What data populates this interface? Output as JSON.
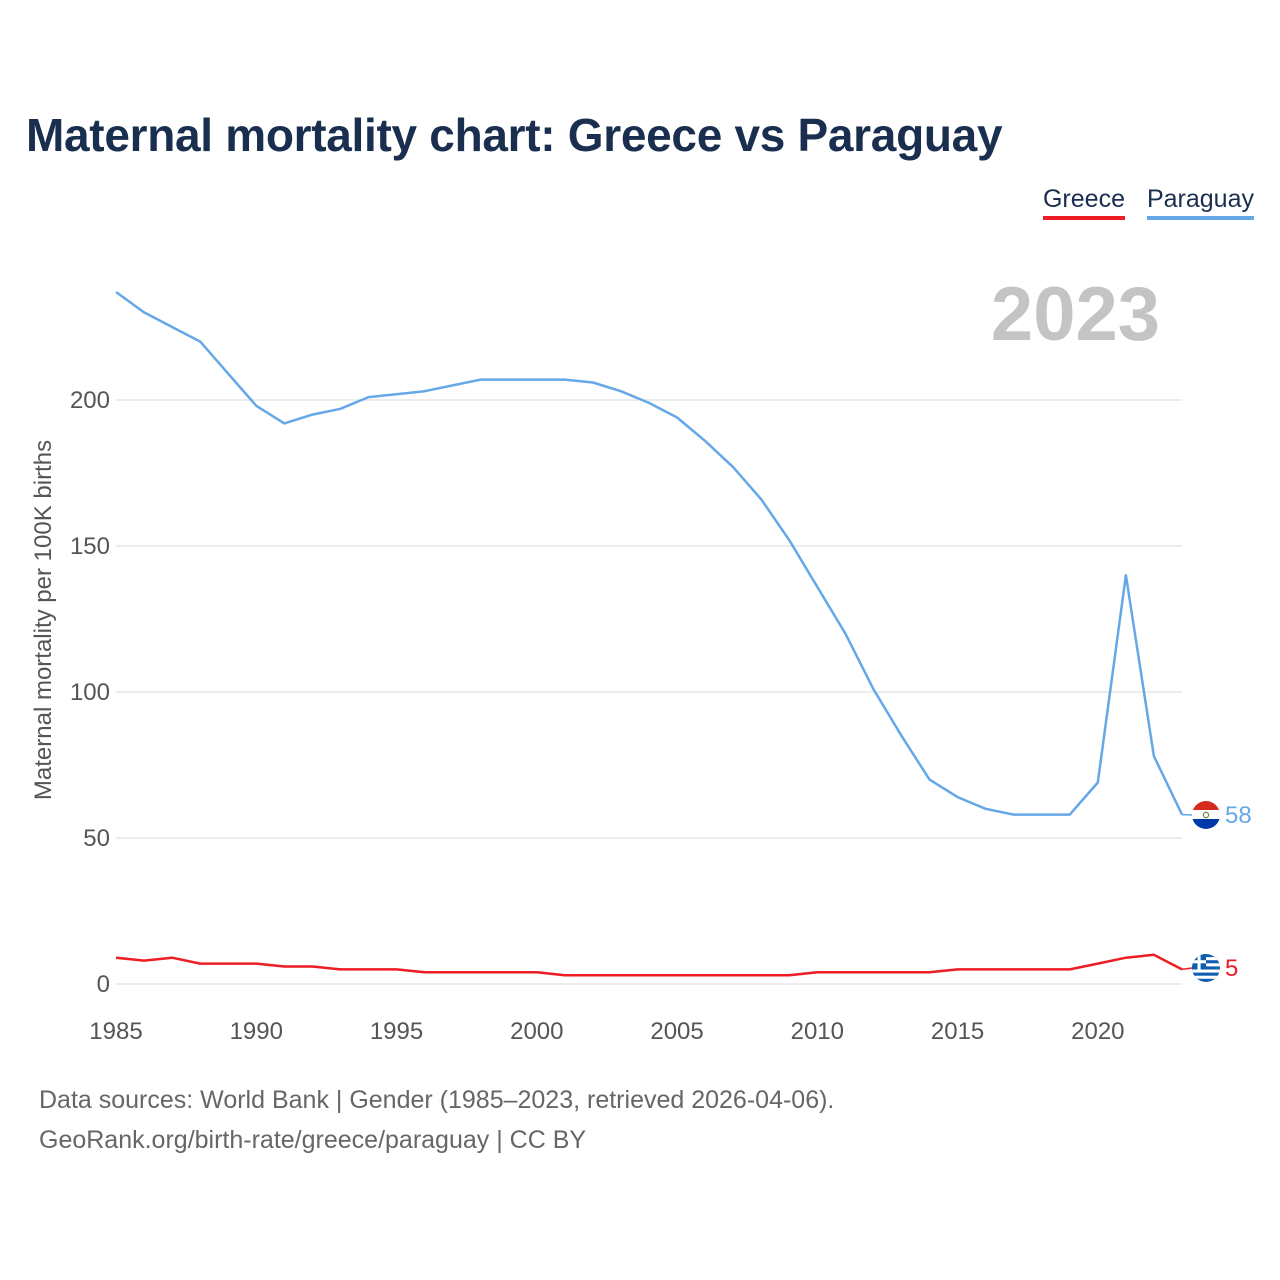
{
  "title": "Maternal mortality chart: Greece vs Paraguay",
  "legend": {
    "greece": "Greece",
    "paraguay": "Paraguay"
  },
  "colors": {
    "greece": "#ee1c25",
    "paraguay": "#64a8e8",
    "title": "#1a2e4f",
    "year_watermark": "#c4c4c4",
    "grid": "#e6e6e6"
  },
  "footer": {
    "line1": "Data sources: World Bank | Gender (1985–2023, retrieved 2026-04-06).",
    "line2": "GeoRank.org/birth-rate/greece/paraguay | CC BY"
  },
  "chart_data": {
    "type": "line",
    "title": "Maternal mortality chart: Greece vs Paraguay",
    "year_label": "2023",
    "xlabel": "",
    "ylabel": "Maternal mortality per 100K births",
    "xlim": [
      1985,
      2023
    ],
    "ylim": [
      0,
      240
    ],
    "x_ticks": [
      1985,
      1990,
      1995,
      2000,
      2005,
      2010,
      2015,
      2020
    ],
    "y_ticks": [
      0,
      50,
      100,
      150,
      200
    ],
    "grid": true,
    "legend_position": "top-right",
    "x": [
      1985,
      1986,
      1987,
      1988,
      1989,
      1990,
      1991,
      1992,
      1993,
      1994,
      1995,
      1996,
      1997,
      1998,
      1999,
      2000,
      2001,
      2002,
      2003,
      2004,
      2005,
      2006,
      2007,
      2008,
      2009,
      2010,
      2011,
      2012,
      2013,
      2014,
      2015,
      2016,
      2017,
      2018,
      2019,
      2020,
      2021,
      2022,
      2023
    ],
    "series": [
      {
        "name": "Greece",
        "color": "#ee1c25",
        "end_label": "5",
        "flag": "greece-flag",
        "values": [
          9,
          8,
          9,
          7,
          7,
          7,
          6,
          6,
          5,
          5,
          5,
          4,
          4,
          4,
          4,
          4,
          3,
          3,
          3,
          3,
          3,
          3,
          3,
          3,
          3,
          4,
          4,
          4,
          4,
          4,
          5,
          5,
          5,
          5,
          5,
          7,
          9,
          10,
          5
        ]
      },
      {
        "name": "Paraguay",
        "color": "#64a8e8",
        "end_label": "58",
        "flag": "paraguay-flag",
        "values": [
          237,
          230,
          225,
          220,
          209,
          198,
          192,
          195,
          197,
          201,
          202,
          203,
          205,
          207,
          207,
          207,
          207,
          206,
          203,
          199,
          194,
          186,
          177,
          166,
          152,
          136,
          120,
          101,
          85,
          70,
          64,
          60,
          58,
          58,
          58,
          69,
          140,
          78,
          58
        ]
      }
    ]
  }
}
